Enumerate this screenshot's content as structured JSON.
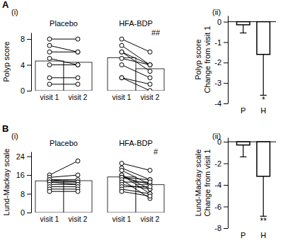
{
  "chart_data": [
    {
      "type": "paired",
      "panel_label": "A",
      "subtitle": "(i)",
      "y_label": "Polyp score",
      "ylim": [
        0,
        9
      ],
      "yticks": [
        0,
        4,
        8
      ],
      "categories": [
        "visit 1",
        "visit 2"
      ],
      "groups": [
        {
          "name": "Placebo",
          "values": [
            4.6,
            4.4
          ],
          "subjects": [
            [
              8,
              8
            ],
            [
              7,
              6
            ],
            [
              6,
              6
            ],
            [
              5,
              4
            ],
            [
              4,
              4
            ],
            [
              2,
              2
            ],
            [
              1,
              1
            ]
          ]
        },
        {
          "name": "HFA-BDP",
          "values": [
            5.1,
            3.4
          ],
          "annotation": "##",
          "subjects": [
            [
              8,
              6
            ],
            [
              7,
              4
            ],
            [
              6,
              4
            ],
            [
              6,
              3
            ],
            [
              5,
              4
            ],
            [
              4,
              2
            ],
            [
              2,
              1
            ],
            [
              2,
              0
            ]
          ]
        }
      ]
    },
    {
      "type": "bar",
      "subtitle": "(ii)",
      "y_label": [
        "Polyp score",
        "Change from visit 1"
      ],
      "ylim": [
        -4,
        0.3
      ],
      "yticks": [
        0,
        -1,
        -2,
        -3,
        -4
      ],
      "categories": [
        "P",
        "H"
      ],
      "values": [
        -0.15,
        -1.6
      ],
      "errors": [
        0.4,
        2.0
      ],
      "annotation": {
        "category": "H",
        "text": "*"
      }
    },
    {
      "type": "paired",
      "panel_label": "B",
      "subtitle": "(i)",
      "y_label": "Lund-Mackay scale",
      "ylim": [
        0,
        26
      ],
      "yticks": [
        0,
        8,
        16,
        24
      ],
      "categories": [
        "visit 1",
        "visit 2"
      ],
      "groups": [
        {
          "name": "Placebo",
          "values": [
            13.5,
            13.6
          ],
          "subjects": [
            [
              16,
              22
            ],
            [
              15,
              16
            ],
            [
              14,
              14
            ],
            [
              14,
              13
            ],
            [
              13,
              13
            ],
            [
              13,
              12
            ],
            [
              12,
              12
            ],
            [
              11,
              11
            ],
            [
              10,
              10
            ],
            [
              9,
              9
            ]
          ]
        },
        {
          "name": "HFA-BDP",
          "values": [
            15.2,
            11.9
          ],
          "annotation": "#",
          "subjects": [
            [
              21,
              18
            ],
            [
              19,
              14
            ],
            [
              18,
              12
            ],
            [
              16,
              10
            ],
            [
              16,
              8
            ],
            [
              15,
              14
            ],
            [
              15,
              12
            ],
            [
              14,
              6
            ],
            [
              13,
              13
            ],
            [
              12,
              10
            ],
            [
              11,
              11
            ],
            [
              10,
              8
            ],
            [
              9,
              7
            ]
          ]
        }
      ]
    },
    {
      "type": "bar",
      "subtitle": "(ii)",
      "y_label": [
        "Lund-Mackay scale",
        "Change from visit 1"
      ],
      "ylim": [
        -8,
        0.4
      ],
      "yticks": [
        0,
        -2,
        -4,
        -6,
        -8
      ],
      "categories": [
        "P",
        "H"
      ],
      "values": [
        -0.3,
        -3.2
      ],
      "errors": [
        1.1,
        3.7
      ],
      "annotation": {
        "category": "H",
        "text": "**"
      }
    }
  ]
}
